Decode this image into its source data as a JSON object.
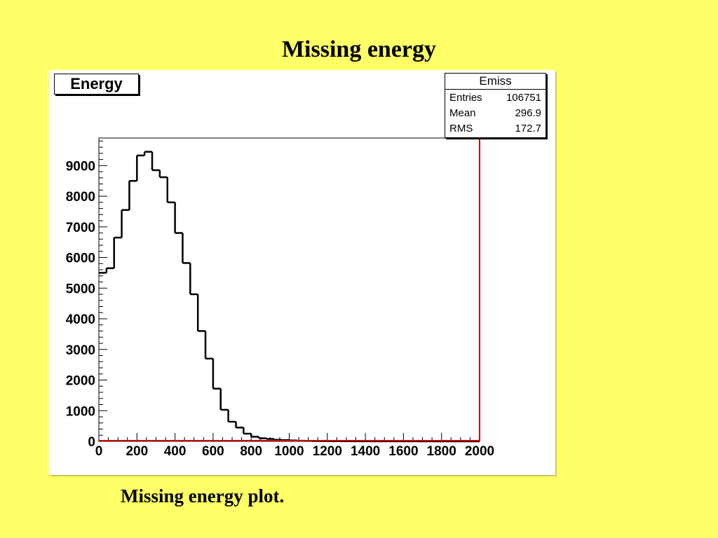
{
  "slide": {
    "title": "Missing energy",
    "caption": "Missing energy plot."
  },
  "chart_data": {
    "type": "bar",
    "title": "Energy",
    "xlabel": "",
    "ylabel": "",
    "xlim": [
      0,
      2000
    ],
    "ylim": [
      0,
      9900
    ],
    "grid": false,
    "histogram": true,
    "bin_width": 40,
    "x_ticks": [
      "0",
      "200",
      "400",
      "600",
      "800",
      "1000",
      "1200",
      "1400",
      "1600",
      "1800",
      "2000"
    ],
    "y_ticks": [
      "0",
      "1000",
      "2000",
      "3000",
      "4000",
      "5000",
      "6000",
      "7000",
      "8000",
      "9000"
    ],
    "values": [
      5500,
      5650,
      6650,
      7550,
      8500,
      9330,
      9450,
      8850,
      8620,
      7800,
      6800,
      5820,
      4800,
      3600,
      2700,
      1720,
      1030,
      640,
      450,
      250,
      150,
      100,
      80,
      50,
      40,
      30,
      20,
      15,
      10,
      8,
      6,
      5,
      4,
      3,
      2,
      2,
      1,
      1,
      1,
      1,
      1,
      1,
      0,
      0,
      0,
      0,
      0,
      0,
      0,
      0
    ],
    "line_color": "#000000",
    "marker_color": "#cc0000",
    "stats": {
      "name": "Emiss",
      "rows": [
        {
          "label": "Entries",
          "value": "106751"
        },
        {
          "label": "Mean",
          "value": "296.9"
        },
        {
          "label": "RMS",
          "value": "172.7"
        }
      ]
    }
  }
}
